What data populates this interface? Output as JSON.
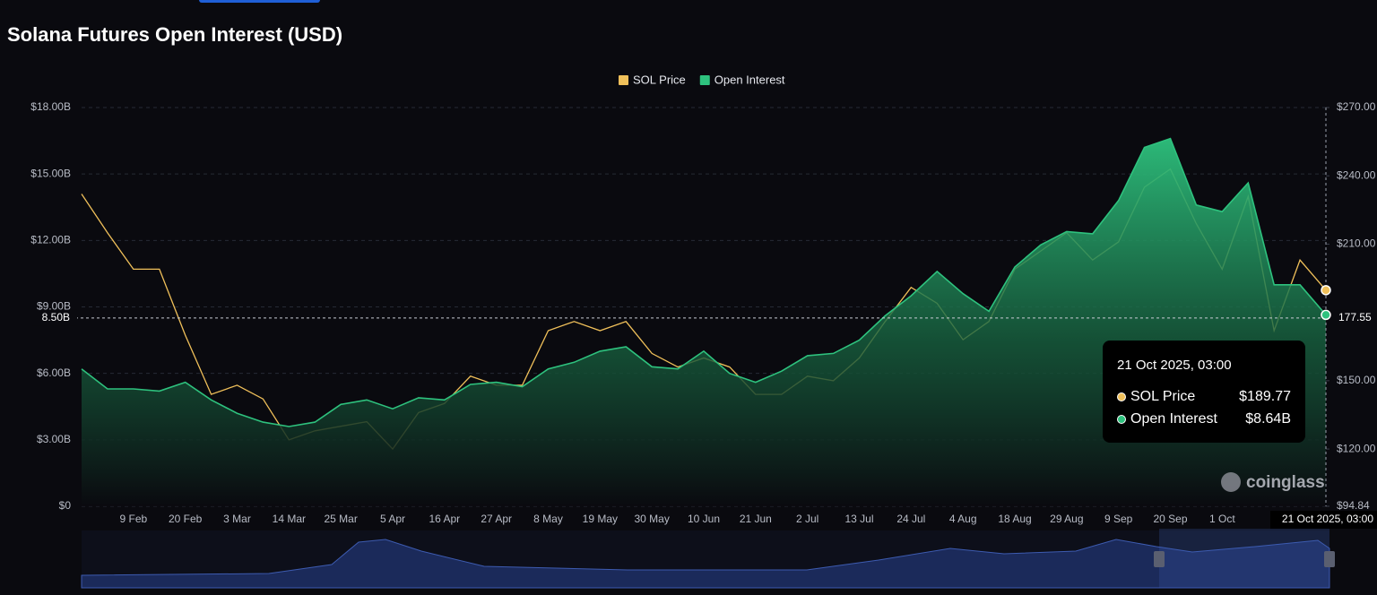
{
  "chart_data": {
    "type": "line",
    "title": "Solana Futures Open Interest (USD)",
    "categories": [
      null,
      null,
      "9 Feb",
      null,
      "20 Feb",
      null,
      "3 Mar",
      null,
      "14 Mar",
      null,
      "25 Mar",
      null,
      "5 Apr",
      null,
      "16 Apr",
      null,
      "27 Apr",
      null,
      "8 May",
      null,
      "19 May",
      null,
      "30 May",
      null,
      "10 Jun",
      null,
      "21 Jun",
      null,
      "2 Jul",
      null,
      "13 Jul",
      null,
      "24 Jul",
      null,
      "4 Aug",
      null,
      "18 Aug",
      null,
      "29 Aug",
      null,
      "9 Sep",
      null,
      "20 Sep",
      null,
      "1 Oct",
      null,
      null,
      null,
      "21 Oct 2025, 03:00"
    ],
    "series": [
      {
        "name": "SOL Price",
        "color": "#f0c05a",
        "type": "line",
        "axis": "y2",
        "values": [
          232,
          215,
          199,
          199,
          170,
          144,
          148,
          142,
          124,
          128,
          130,
          132,
          120,
          136,
          140,
          152,
          148,
          148,
          172,
          176,
          172,
          176,
          162,
          156,
          160,
          156,
          144,
          144,
          152,
          150,
          160,
          176,
          191,
          184,
          168,
          176,
          199,
          207,
          215,
          203,
          211,
          235,
          243,
          219,
          199,
          231,
          172,
          203,
          189.77
        ],
        "value_labels": [
          null,
          null,
          null,
          null,
          null,
          null,
          null,
          null,
          null,
          null,
          null,
          null,
          null,
          null,
          null,
          null,
          null,
          null,
          null,
          null,
          null,
          null,
          null,
          null,
          null,
          null,
          null,
          null,
          null,
          null,
          null,
          null,
          null,
          null,
          null,
          null,
          null,
          null,
          null,
          null,
          null,
          null,
          null,
          null,
          null,
          null,
          null,
          null,
          "$189.77"
        ]
      },
      {
        "name": "Open Interest",
        "color": "#2ec27e",
        "type": "area",
        "values": [
          6.2,
          5.3,
          5.3,
          5.2,
          5.6,
          4.8,
          4.2,
          3.8,
          3.6,
          3.8,
          4.6,
          4.8,
          4.4,
          4.9,
          4.8,
          5.5,
          5.6,
          5.4,
          6.2,
          6.5,
          7.0,
          7.2,
          6.3,
          6.2,
          7.0,
          6.0,
          5.6,
          6.1,
          6.8,
          6.9,
          7.5,
          8.6,
          9.5,
          10.6,
          9.6,
          8.8,
          10.8,
          11.8,
          12.4,
          12.3,
          13.8,
          16.2,
          16.6,
          13.6,
          13.3,
          14.6,
          10.0,
          10.0,
          8.64
        ],
        "value_labels": [
          null,
          null,
          null,
          null,
          null,
          null,
          null,
          null,
          null,
          null,
          null,
          null,
          null,
          null,
          null,
          null,
          null,
          null,
          null,
          null,
          null,
          null,
          null,
          null,
          null,
          null,
          null,
          null,
          null,
          null,
          null,
          null,
          null,
          null,
          null,
          null,
          null,
          null,
          null,
          null,
          null,
          null,
          null,
          null,
          null,
          null,
          null,
          null,
          "$8.64B"
        ]
      }
    ],
    "ylim": [
      0,
      18
    ],
    "yticks": [
      {
        "value": 0,
        "label": "$0"
      },
      {
        "value": 3,
        "label": "$3.00B"
      },
      {
        "value": 6,
        "label": "$6.00B"
      },
      {
        "value": 9,
        "label": "$9.00B"
      },
      {
        "value": 12,
        "label": "$12.00B"
      },
      {
        "value": 15,
        "label": "$15.00B"
      },
      {
        "value": 18,
        "label": "$18.00B"
      }
    ],
    "y2lim": [
      94.84,
      270
    ],
    "y2ticks": [
      {
        "value": 94.84,
        "label": "$94.84"
      },
      {
        "value": 120,
        "label": "$120.00"
      },
      {
        "value": 150,
        "label": "$150.00"
      },
      {
        "value": 210,
        "label": "$210.00"
      },
      {
        "value": 240,
        "label": "$240.00"
      },
      {
        "value": 270,
        "label": "$270.00"
      }
    ],
    "grid": true,
    "legend": "top",
    "crosshair": {
      "y": 8.5,
      "y_label": "8.50B",
      "y2": 177.55,
      "y2_label": "177.55"
    },
    "watermark": "coinglass"
  }
}
